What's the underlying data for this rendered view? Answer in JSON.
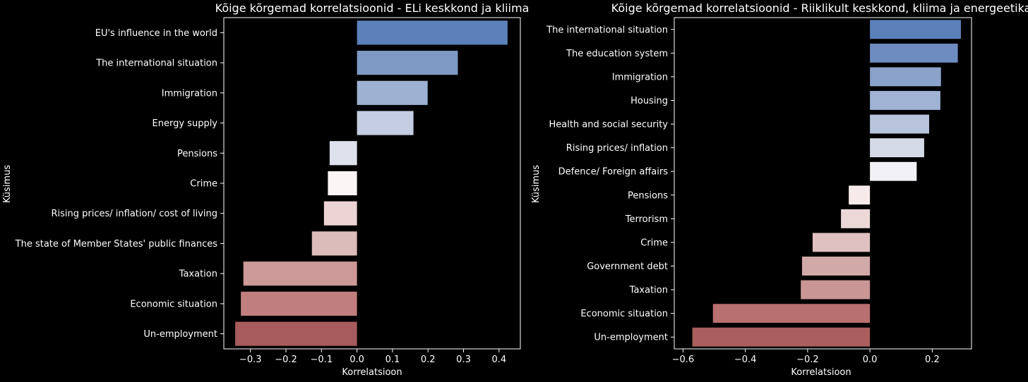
{
  "chart_data": [
    {
      "type": "bar",
      "orientation": "horizontal",
      "title": "Kõige kõrgemad korrelatsioonid - ELi keskkond ja kliima",
      "xlabel": "Korrelatsioon",
      "ylabel": "Küsimus",
      "xlim": [
        -0.375,
        0.46
      ],
      "xticks": [
        -0.3,
        -0.2,
        -0.1,
        0.0,
        0.1,
        0.2,
        0.3,
        0.4
      ],
      "xtick_labels": [
        "−0.3",
        "−0.2",
        "−0.1",
        "0.0",
        "0.1",
        "0.2",
        "0.3",
        "0.4"
      ],
      "categories": [
        "EU's influence in the world",
        "The international situation",
        "Immigration",
        "Energy supply",
        "Pensions",
        "Crime",
        "Rising prices/ inflation/ cost of living",
        "The state of Member States' public finances",
        "Taxation",
        "Economic situation",
        "Un-employment"
      ],
      "values": [
        0.424,
        0.284,
        0.199,
        0.159,
        -0.077,
        -0.082,
        -0.093,
        -0.127,
        -0.32,
        -0.327,
        -0.343
      ],
      "colors": [
        "#5b80ba",
        "#7d99c4",
        "#9eb1d3",
        "#c4cde1",
        "#dde2ec",
        "#fcf5f5",
        "#ecd4d4",
        "#dcbbbb",
        "#cc9898",
        "#c07e7e",
        "#a85b5c"
      ],
      "grid": false,
      "legend": "none"
    },
    {
      "type": "bar",
      "orientation": "horizontal",
      "title": "Kõige kõrgemad korrelatsioonid - Riiklikult keskkond, kliima ja energeetika",
      "xlabel": "Korrelatsioon",
      "ylabel": "Küsimus",
      "xlim": [
        -0.628,
        0.326
      ],
      "xticks": [
        -0.6,
        -0.4,
        -0.2,
        0.0,
        0.2
      ],
      "xtick_labels": [
        "−0.6",
        "−0.4",
        "−0.2",
        "0.0",
        "0.2"
      ],
      "categories": [
        "The international situation ",
        "The education system",
        "Immigration",
        "Housing",
        "Health and social security",
        "Rising prices/ inflation",
        "Defence/ Foreign affairs",
        "Pensions",
        "Terrorism",
        "Crime",
        "Government debt ",
        "Taxation",
        "Economic situation",
        "Un-employment"
      ],
      "values": [
        0.292,
        0.282,
        0.228,
        0.226,
        0.19,
        0.174,
        0.15,
        -0.068,
        -0.093,
        -0.184,
        -0.218,
        -0.222,
        -0.504,
        -0.57
      ],
      "colors": [
        "#5b80ba",
        "#6f8cc0",
        "#8ba2cb",
        "#a0b3d5",
        "#b8c4dc",
        "#d5dbe6",
        "#f2f2f6",
        "#f7eaea",
        "#edd8d8",
        "#e0c1c1",
        "#d2a9a9",
        "#c99595",
        "#b87070",
        "#aa5e5e"
      ],
      "grid": false,
      "legend": "none"
    }
  ]
}
